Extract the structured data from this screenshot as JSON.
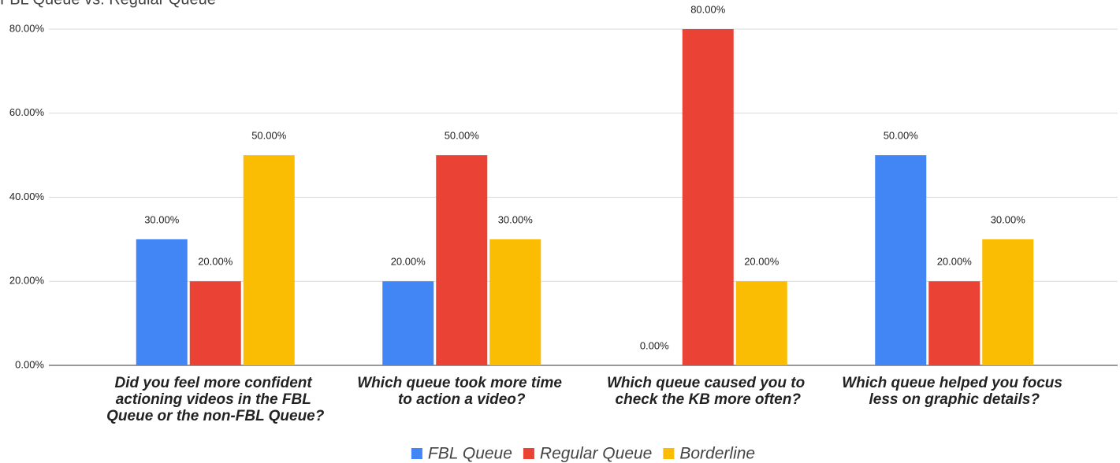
{
  "chart_data": {
    "type": "bar",
    "title": "FBL Queue vs. Regular Queue",
    "categories": [
      "Did you feel more confident actioning videos in the FBL Queue or the non-FBL Queue?",
      "Which queue took more time to action a video?",
      "Which queue caused you to check the KB more often?",
      "Which queue helped you focus less on graphic details?"
    ],
    "series": [
      {
        "name": "FBL Queue",
        "color": "#4285f4",
        "values": [
          30,
          20,
          0,
          50
        ],
        "value_labels": [
          "30.00%",
          "20.00%",
          "0.00%",
          "50.00%"
        ]
      },
      {
        "name": "Regular Queue",
        "color": "#ea4335",
        "values": [
          20,
          50,
          80,
          20
        ],
        "value_labels": [
          "20.00%",
          "50.00%",
          "80.00%",
          "20.00%"
        ]
      },
      {
        "name": "Borderline",
        "color": "#fbbc04",
        "values": [
          50,
          30,
          20,
          30
        ],
        "value_labels": [
          "50.00%",
          "30.00%",
          "20.00%",
          "30.00%"
        ]
      }
    ],
    "ylim": [
      0,
      80
    ],
    "yticks": [
      {
        "value": 0,
        "label": "0.00%"
      },
      {
        "value": 20,
        "label": "20.00%"
      },
      {
        "value": 40,
        "label": "40.00%"
      },
      {
        "value": 60,
        "label": "60.00%"
      },
      {
        "value": 80,
        "label": "80.00%"
      }
    ],
    "grid": true,
    "legend": "bottom"
  }
}
